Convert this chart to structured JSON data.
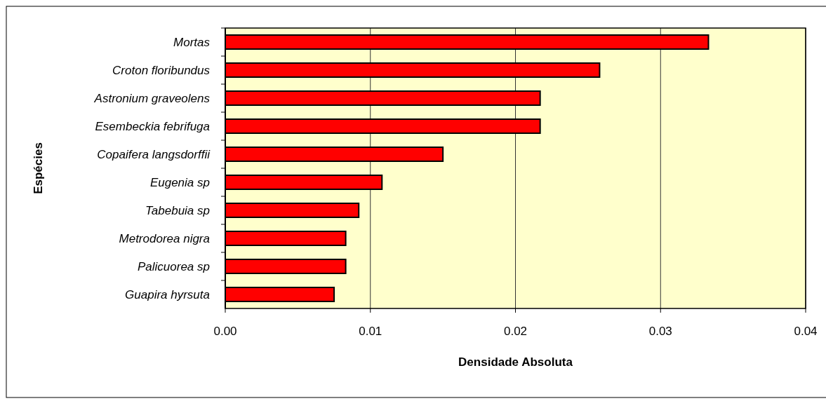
{
  "chart_data": {
    "type": "bar",
    "orientation": "horizontal",
    "xlabel": "Densidade Absoluta",
    "ylabel": "Espécies",
    "categories": [
      "Mortas",
      "Croton floribundus",
      "Astronium graveolens",
      "Esembeckia febrifuga",
      "Copaifera langsdorffii",
      "Eugenia sp",
      "Tabebuia sp",
      "Metrodorea nigra",
      "Palicuorea sp",
      "Guapira hyrsuta"
    ],
    "values": [
      0.0333,
      0.0258,
      0.0217,
      0.0217,
      0.015,
      0.0108,
      0.0092,
      0.0083,
      0.0083,
      0.0075
    ],
    "color": "#ff0000",
    "xlim": [
      0,
      0.04
    ],
    "xticks": [
      {
        "value": 0,
        "label": "0.00"
      },
      {
        "value": 0.01,
        "label": "0.01"
      },
      {
        "value": 0.02,
        "label": "0.02"
      },
      {
        "value": 0.03,
        "label": "0.03"
      },
      {
        "value": 0.04,
        "label": "0.04"
      }
    ],
    "grid": "x"
  }
}
